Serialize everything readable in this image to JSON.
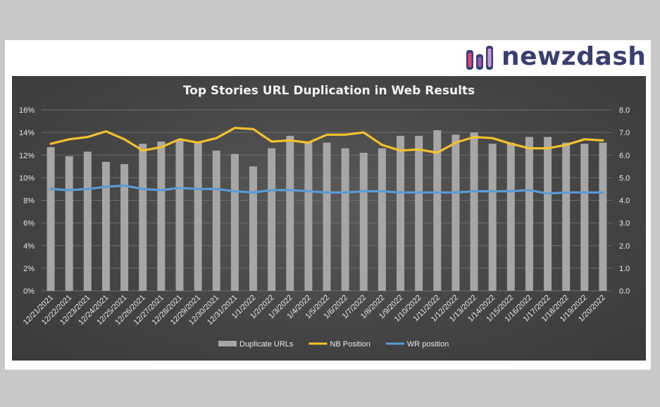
{
  "brand": {
    "name": "newzdash"
  },
  "chart_data": {
    "type": "bar-line-combo",
    "title": "Top Stories URL Duplication in Web Results",
    "categories": [
      "12/21/2021",
      "12/22/2021",
      "12/23/2021",
      "12/24/2021",
      "12/25/2021",
      "12/26/2021",
      "12/27/2021",
      "12/28/2021",
      "12/29/2021",
      "12/30/2021",
      "12/31/2021",
      "1/1/2022",
      "1/2/2022",
      "1/3/2022",
      "1/4/2022",
      "1/5/2022",
      "1/6/2022",
      "1/7/2022",
      "1/8/2022",
      "1/9/2022",
      "1/10/2022",
      "1/11/2022",
      "1/12/2022",
      "1/13/2022",
      "1/14/2022",
      "1/15/2022",
      "1/16/2022",
      "1/17/2022",
      "1/18/2022",
      "1/19/2022",
      "1/20/2022"
    ],
    "series": [
      {
        "name": "Duplicate URLs",
        "kind": "bar",
        "axis": "left",
        "color": "#a6a6a6",
        "values": [
          12.7,
          11.9,
          12.3,
          11.4,
          11.2,
          13.0,
          13.2,
          13.3,
          13.1,
          12.4,
          12.1,
          11.0,
          12.6,
          13.7,
          13.2,
          13.1,
          12.6,
          12.2,
          12.6,
          13.7,
          13.7,
          14.2,
          13.8,
          14.0,
          13.0,
          13.1,
          13.6,
          13.6,
          13.1,
          13.0,
          13.1
        ]
      },
      {
        "name": "NB Position",
        "kind": "line",
        "axis": "right",
        "color": "#f2c12e",
        "values": [
          6.5,
          6.7,
          6.8,
          7.05,
          6.7,
          6.2,
          6.35,
          6.7,
          6.55,
          6.75,
          7.2,
          7.15,
          6.6,
          6.65,
          6.55,
          6.9,
          6.9,
          7.0,
          6.45,
          6.2,
          6.25,
          6.1,
          6.55,
          6.8,
          6.75,
          6.5,
          6.3,
          6.3,
          6.45,
          6.7,
          6.65
        ]
      },
      {
        "name": "WR position",
        "kind": "line",
        "axis": "right",
        "color": "#5b9bd5",
        "values": [
          4.5,
          4.45,
          4.5,
          4.6,
          4.65,
          4.5,
          4.45,
          4.55,
          4.5,
          4.5,
          4.4,
          4.35,
          4.45,
          4.45,
          4.4,
          4.35,
          4.35,
          4.4,
          4.4,
          4.35,
          4.35,
          4.35,
          4.35,
          4.4,
          4.4,
          4.4,
          4.45,
          4.3,
          4.35,
          4.35,
          4.35
        ]
      }
    ],
    "y_left": {
      "min": 0,
      "max": 16,
      "step": 2,
      "ticks": [
        "0%",
        "2%",
        "4%",
        "6%",
        "8%",
        "10%",
        "12%",
        "14%",
        "16%"
      ]
    },
    "y_right": {
      "min": 0,
      "max": 8,
      "step": 1,
      "ticks": [
        "0.0",
        "1.0",
        "2.0",
        "3.0",
        "4.0",
        "5.0",
        "6.0",
        "7.0",
        "8.0"
      ]
    },
    "grid": true,
    "legend_position": "bottom"
  }
}
